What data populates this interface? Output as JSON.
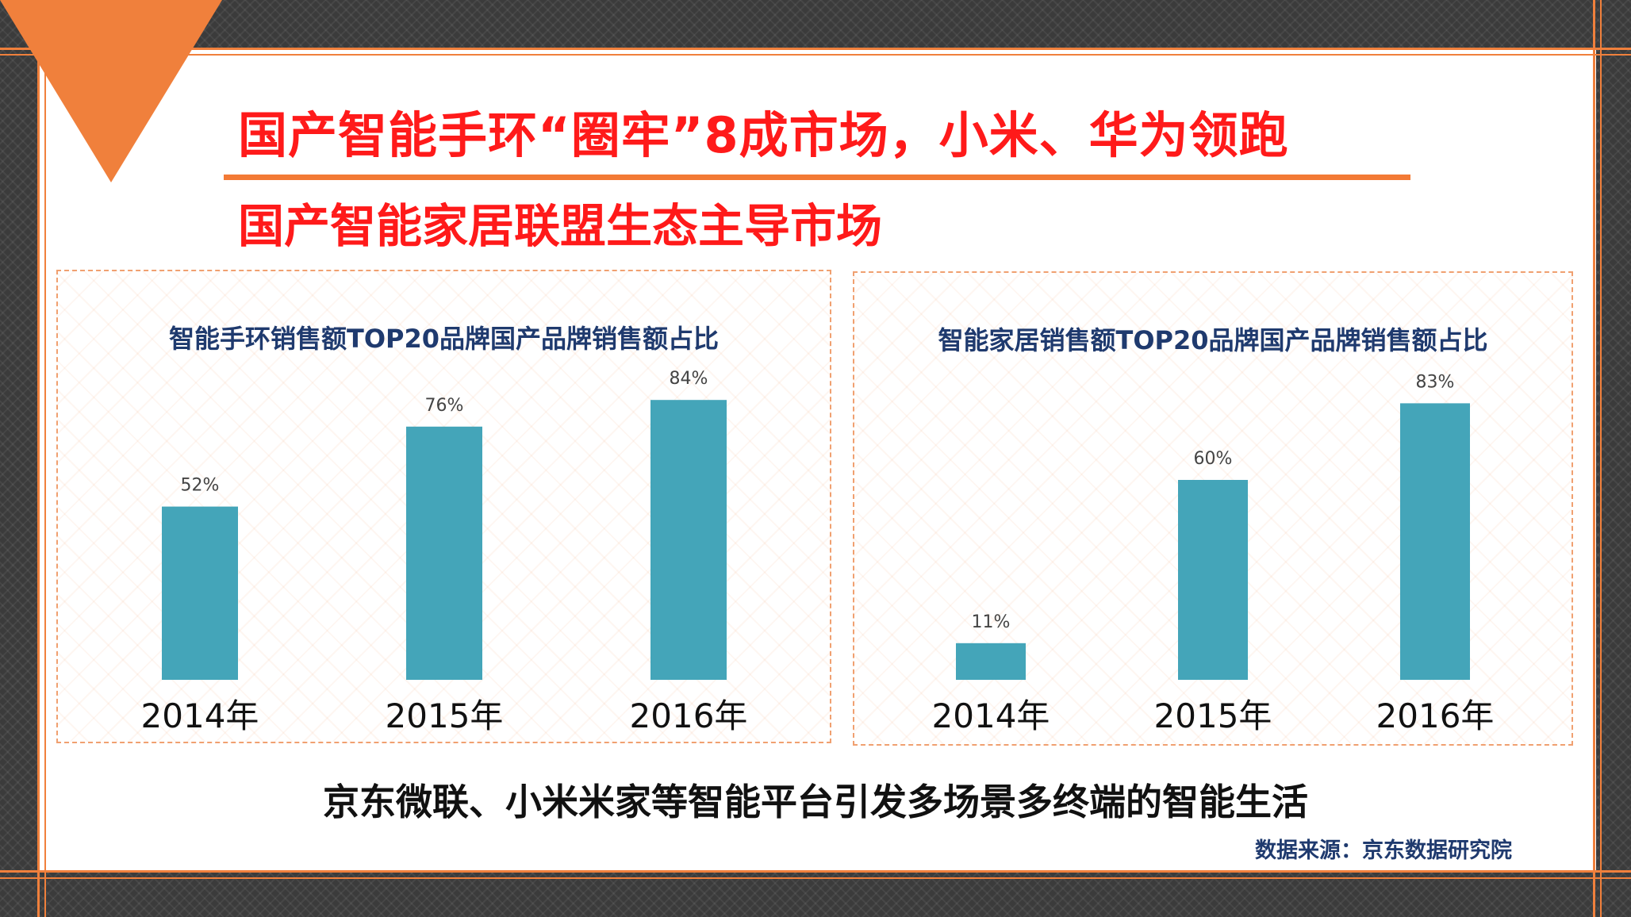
{
  "title": "国产智能手环“圈牢”8成市场，小米、华为领跑",
  "subtitle": "国产智能家居联盟生态主导市场",
  "bottom_text": "京东微联、小米米家等智能平台引发多场景多终端的智能生活",
  "source": "数据来源：京东数据研究院",
  "colors": {
    "accent": "#f0803c",
    "headline": "#ff1a1a",
    "bar": "#44a5b9",
    "chart_title": "#1f3a6e"
  },
  "chart_data": [
    {
      "type": "bar",
      "title": "智能手环销售额TOP20品牌国产品牌销售额占比",
      "categories": [
        "2014年",
        "2015年",
        "2016年"
      ],
      "values": [
        52,
        76,
        84
      ],
      "labels": [
        "52%",
        "76%",
        "84%"
      ],
      "ylim": [
        0,
        100
      ],
      "grid": false
    },
    {
      "type": "bar",
      "title": "智能家居销售额TOP20品牌国产品牌销售额占比",
      "categories": [
        "2014年",
        "2015年",
        "2016年"
      ],
      "values": [
        11,
        60,
        83
      ],
      "labels": [
        "11%",
        "60%",
        "83%"
      ],
      "ylim": [
        0,
        100
      ],
      "grid": false
    }
  ]
}
